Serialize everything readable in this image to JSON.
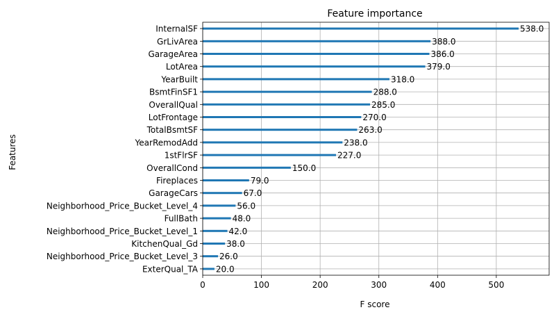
{
  "chart_data": {
    "type": "bar",
    "orientation": "horizontal",
    "title": "Feature importance",
    "xlabel": "F score",
    "ylabel": "Features",
    "xlim": [
      0,
      590
    ],
    "xticks": [
      0,
      100,
      200,
      300,
      400,
      500
    ],
    "grid": true,
    "bar_color": "#1f77b4",
    "categories": [
      "InternalSF",
      "GrLivArea",
      "GarageArea",
      "LotArea",
      "YearBuilt",
      "BsmtFinSF1",
      "OverallQual",
      "LotFrontage",
      "TotalBsmtSF",
      "YearRemodAdd",
      "1stFlrSF",
      "OverallCond",
      "Fireplaces",
      "GarageCars",
      "Neighborhood_Price_Bucket_Level_4",
      "FullBath",
      "Neighborhood_Price_Bucket_Level_1",
      "KitchenQual_Gd",
      "Neighborhood_Price_Bucket_Level_3",
      "ExterQual_TA"
    ],
    "values": [
      538,
      388,
      386,
      379,
      318,
      288,
      285,
      270,
      263,
      238,
      227,
      150,
      79,
      67,
      56,
      48,
      42,
      38,
      26,
      20
    ],
    "value_labels": [
      "538.0",
      "388.0",
      "386.0",
      "379.0",
      "318.0",
      "288.0",
      "285.0",
      "270.0",
      "263.0",
      "238.0",
      "227.0",
      "150.0",
      "79.0",
      "67.0",
      "56.0",
      "48.0",
      "42.0",
      "38.0",
      "26.0",
      "20.0"
    ]
  }
}
